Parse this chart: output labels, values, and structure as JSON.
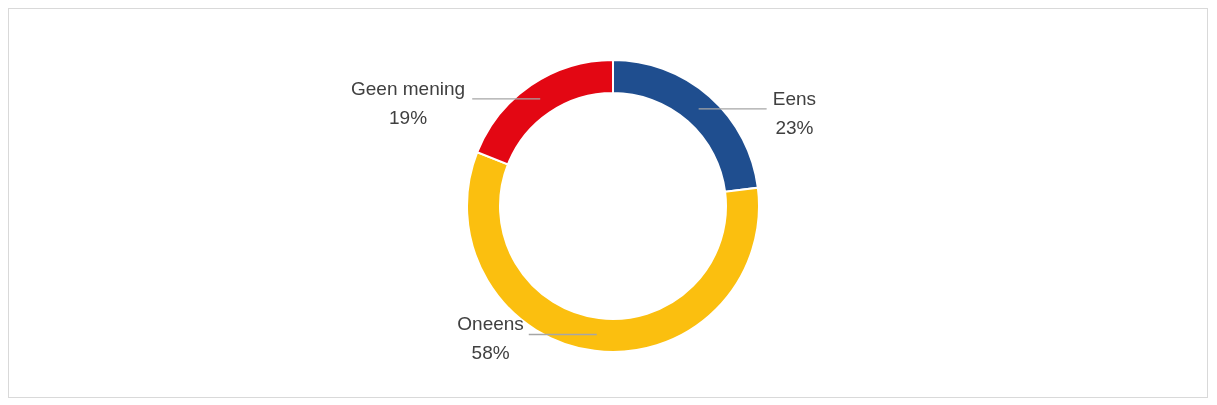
{
  "chart_data": {
    "type": "donut",
    "categories": [
      "Eens",
      "Oneens",
      "Geen mening"
    ],
    "values": [
      23,
      58,
      19
    ],
    "colors": [
      "#1f4e8f",
      "#fbbf0f",
      "#e30713"
    ],
    "value_labels": [
      "23%",
      "58%",
      "19%"
    ]
  }
}
